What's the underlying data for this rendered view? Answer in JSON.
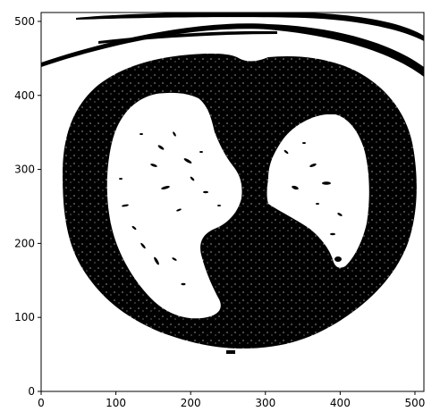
{
  "image": {
    "description_type": "binary thresholded axial chest CT slice",
    "colors": {
      "background": "#ffffff",
      "foreground": "#000000",
      "axes": "#000000"
    }
  },
  "chart_data": {
    "type": "image",
    "xlim": [
      0,
      512
    ],
    "ylim": [
      0,
      512
    ],
    "x_ticks": [
      0,
      100,
      200,
      300,
      400,
      500
    ],
    "y_ticks": [
      0,
      100,
      200,
      300,
      400,
      500
    ],
    "xlabel": "",
    "ylabel": "",
    "title": "",
    "grid": false
  }
}
